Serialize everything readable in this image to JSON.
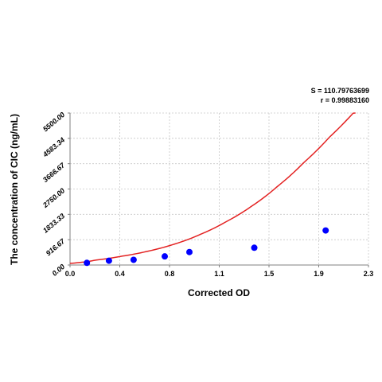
{
  "chart_data": {
    "type": "scatter",
    "title": "",
    "xlabel": "Corrected OD",
    "ylabel": "The concentration of CIC (ng/mL)",
    "xlim": [
      0.0,
      2.3
    ],
    "ylim": [
      0.0,
      5500.0
    ],
    "x_ticks": [
      "0.0",
      "0.4",
      "0.8",
      "1.1",
      "1.5",
      "1.9",
      "2.3"
    ],
    "y_ticks": [
      "0.00",
      "916.67",
      "1833.33",
      "2750.00",
      "3666.67",
      "4583.34",
      "5500.00"
    ],
    "grid": true,
    "stats": {
      "s": "S = 110.79763699",
      "r": "r = 0.99883160"
    },
    "colors": {
      "points": "#0000ff",
      "curve": "#e32222",
      "grid": "#c8c8c8",
      "axis": "#808080"
    },
    "series": [
      {
        "type": "scatter",
        "x": [
          0.13,
          0.3,
          0.49,
          0.73,
          0.92,
          1.42,
          1.97
        ],
        "y": [
          78,
          156,
          188,
          312,
          469,
          625,
          1250
        ]
      },
      {
        "type": "line",
        "x": [
          0.0,
          0.2,
          0.4,
          0.6,
          0.8,
          1.0,
          1.2,
          1.4,
          1.6,
          1.8,
          2.0,
          2.2
        ],
        "y": [
          60,
          180,
          320,
          500,
          750,
          1100,
          1560,
          2130,
          2850,
          3700,
          4630,
          5590
        ]
      }
    ]
  }
}
